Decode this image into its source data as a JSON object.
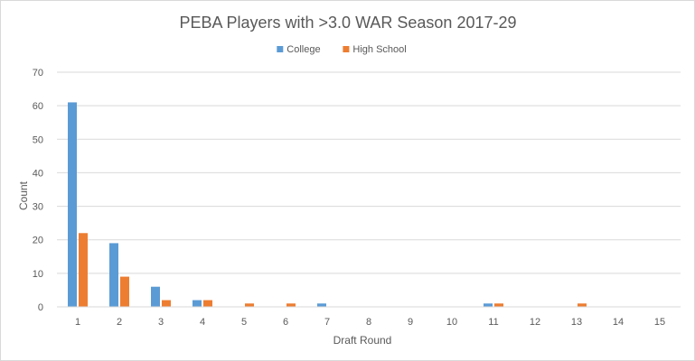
{
  "chart_data": {
    "type": "bar",
    "title": "PEBA Players with >3.0 WAR Season 2017-29",
    "xlabel": "Draft Round",
    "ylabel": "Count",
    "ylim": [
      0,
      70
    ],
    "yticks": [
      0,
      10,
      20,
      30,
      40,
      50,
      60,
      70
    ],
    "grid": true,
    "legend_position": "top",
    "categories": [
      "1",
      "2",
      "3",
      "4",
      "5",
      "6",
      "7",
      "8",
      "9",
      "10",
      "11",
      "12",
      "13",
      "14",
      "15"
    ],
    "series": [
      {
        "name": "College",
        "color": "#5b9bd5",
        "values": [
          61,
          19,
          6,
          2,
          0,
          0,
          1,
          0,
          0,
          0,
          1,
          0,
          0,
          0,
          0
        ]
      },
      {
        "name": "High School",
        "color": "#ed7d31",
        "values": [
          22,
          9,
          2,
          2,
          1,
          1,
          0,
          0,
          0,
          0,
          1,
          0,
          1,
          0,
          0
        ]
      }
    ]
  }
}
